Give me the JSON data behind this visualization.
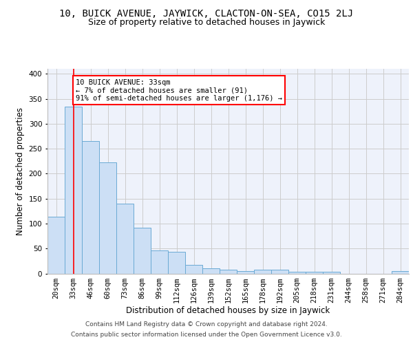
{
  "title_line1": "10, BUICK AVENUE, JAYWICK, CLACTON-ON-SEA, CO15 2LJ",
  "title_line2": "Size of property relative to detached houses in Jaywick",
  "xlabel": "Distribution of detached houses by size in Jaywick",
  "ylabel": "Number of detached properties",
  "footer_line1": "Contains HM Land Registry data © Crown copyright and database right 2024.",
  "footer_line2": "Contains public sector information licensed under the Open Government Licence v3.0.",
  "bar_labels": [
    "20sqm",
    "33sqm",
    "46sqm",
    "60sqm",
    "73sqm",
    "86sqm",
    "99sqm",
    "112sqm",
    "126sqm",
    "139sqm",
    "152sqm",
    "165sqm",
    "178sqm",
    "192sqm",
    "205sqm",
    "218sqm",
    "231sqm",
    "244sqm",
    "258sqm",
    "271sqm",
    "284sqm"
  ],
  "bar_values": [
    114,
    334,
    265,
    222,
    140,
    92,
    46,
    43,
    17,
    10,
    7,
    5,
    7,
    8,
    4,
    3,
    4,
    0,
    0,
    0,
    5
  ],
  "bar_color": "#ccdff5",
  "bar_edge_color": "#6aaad4",
  "annotation_text": "10 BUICK AVENUE: 33sqm\n← 7% of detached houses are smaller (91)\n91% of semi-detached houses are larger (1,176) →",
  "annotation_box_color": "white",
  "annotation_box_edge_color": "red",
  "vline_color": "red",
  "ylim": [
    0,
    410
  ],
  "yticks": [
    0,
    50,
    100,
    150,
    200,
    250,
    300,
    350,
    400
  ],
  "grid_color": "#cccccc",
  "axes_bg_color": "#eef2fb",
  "title_fontsize": 10,
  "subtitle_fontsize": 9,
  "tick_fontsize": 7.5,
  "label_fontsize": 8.5,
  "footer_fontsize": 6.5
}
